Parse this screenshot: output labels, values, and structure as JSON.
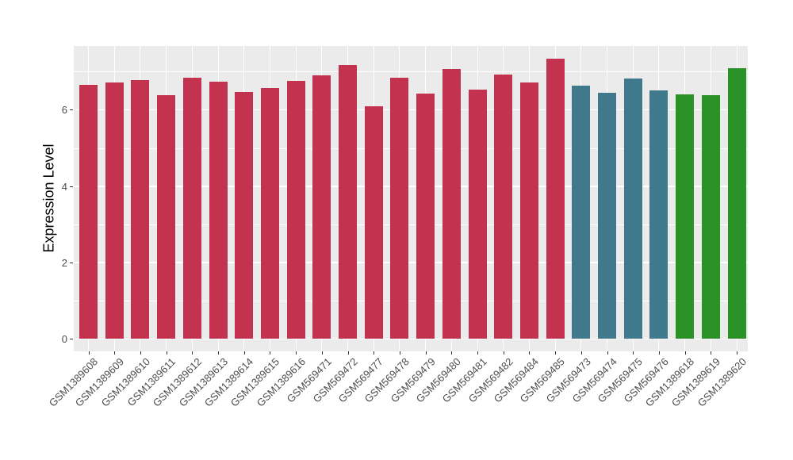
{
  "figure": {
    "background": "#FFFFFF",
    "panel_background": "#EBEBEB",
    "gridline_color": "#FFFFFF",
    "tick_mark_color": "#333333",
    "tick_label_color": "#4D4D4D",
    "axis_title_color": "#000000"
  },
  "chart_data": {
    "type": "bar",
    "title": "",
    "xlabel": "",
    "ylabel": "Expression Level",
    "ylim": [
      0,
      7.7
    ],
    "yticks": [
      0,
      2,
      4,
      6
    ],
    "yticks_minor": [
      1,
      3,
      5,
      7
    ],
    "grid": "on",
    "legend": "none",
    "categories": [
      "GSM1389608",
      "GSM1389609",
      "GSM1389610",
      "GSM1389611",
      "GSM1389612",
      "GSM1389613",
      "GSM1389614",
      "GSM1389615",
      "GSM1389616",
      "GSM569471",
      "GSM569472",
      "GSM569477",
      "GSM569478",
      "GSM569479",
      "GSM569480",
      "GSM569481",
      "GSM569482",
      "GSM569484",
      "GSM569485",
      "GSM569473",
      "GSM569474",
      "GSM569475",
      "GSM569476",
      "GSM1389618",
      "GSM1389619",
      "GSM1389620"
    ],
    "values": [
      6.66,
      6.71,
      6.78,
      6.39,
      6.83,
      6.74,
      6.47,
      6.58,
      6.76,
      6.91,
      7.17,
      6.09,
      6.83,
      6.42,
      7.07,
      6.52,
      6.92,
      6.72,
      7.33,
      6.63,
      6.44,
      6.82,
      6.51,
      6.41,
      6.39,
      7.08
    ],
    "bar_groups": [
      "series1",
      "series1",
      "series1",
      "series1",
      "series1",
      "series1",
      "series1",
      "series1",
      "series1",
      "series1",
      "series1",
      "series1",
      "series1",
      "series1",
      "series1",
      "series1",
      "series1",
      "series1",
      "series1",
      "series2",
      "series2",
      "series2",
      "series2",
      "series3",
      "series3",
      "series3"
    ],
    "group_colors": {
      "series1": "#C3334F",
      "series2": "#41798C",
      "series3": "#2B9227"
    }
  }
}
